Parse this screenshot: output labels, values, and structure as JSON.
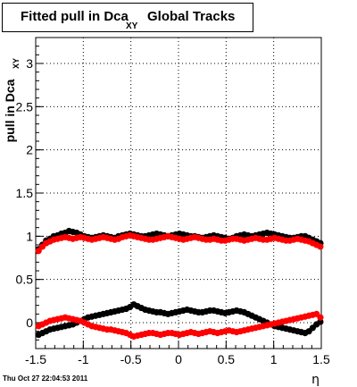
{
  "title": {
    "main": "Fitted pull in Dca",
    "subscript": "XY",
    "rest": "Global Tracks"
  },
  "footer": "Thu Oct 27 22:04:53 2011",
  "chart_data": {
    "type": "scatter",
    "title": "Fitted pull in Dca XY Global Tracks",
    "xlabel": "η",
    "ylabel": "pull in Dca",
    "ylabel_sub": "XY",
    "xlim": [
      -1.5,
      1.5
    ],
    "ylim": [
      -0.3,
      3.3
    ],
    "grid": true,
    "x_ticks": [
      -1.5,
      -1,
      -0.5,
      0,
      0.5,
      1,
      1.5
    ],
    "x_tick_labels": [
      "-1.5",
      "-1",
      "-0.5",
      "0",
      "0.5",
      "1",
      "1.5"
    ],
    "y_ticks": [
      0,
      0.5,
      1,
      1.5,
      2,
      2.5,
      3
    ],
    "y_tick_labels": [
      "0",
      "0.5",
      "1",
      "1.5",
      "2",
      "2.5",
      "3"
    ],
    "x": [
      -1.47,
      -1.43,
      -1.39,
      -1.35,
      -1.31,
      -1.27,
      -1.23,
      -1.19,
      -1.15,
      -1.11,
      -1.07,
      -1.03,
      -0.99,
      -0.95,
      -0.91,
      -0.87,
      -0.83,
      -0.79,
      -0.75,
      -0.71,
      -0.67,
      -0.63,
      -0.59,
      -0.55,
      -0.51,
      -0.47,
      -0.43,
      -0.39,
      -0.35,
      -0.31,
      -0.27,
      -0.23,
      -0.19,
      -0.15,
      -0.11,
      -0.07,
      -0.03,
      0.01,
      0.05,
      0.09,
      0.13,
      0.17,
      0.21,
      0.25,
      0.29,
      0.33,
      0.37,
      0.41,
      0.45,
      0.49,
      0.53,
      0.57,
      0.61,
      0.65,
      0.69,
      0.73,
      0.77,
      0.81,
      0.85,
      0.89,
      0.93,
      0.97,
      1.01,
      1.05,
      1.09,
      1.13,
      1.17,
      1.21,
      1.25,
      1.29,
      1.33,
      1.37,
      1.41,
      1.45,
      1.49
    ],
    "series": [
      {
        "color": "#000000",
        "values": [
          0.85,
          0.9,
          0.95,
          0.97,
          1.0,
          1.01,
          1.03,
          1.04,
          1.06,
          1.05,
          1.04,
          1.02,
          1.0,
          0.99,
          0.98,
          0.99,
          1.0,
          1.01,
          1.0,
          0.99,
          0.98,
          1.0,
          1.01,
          1.02,
          1.03,
          1.02,
          1.01,
          1.0,
          1.0,
          1.01,
          1.02,
          1.03,
          1.02,
          1.01,
          1.0,
          1.01,
          1.02,
          1.03,
          1.02,
          1.01,
          1.0,
          1.0,
          0.99,
          0.98,
          0.99,
          1.0,
          1.01,
          1.0,
          0.99,
          0.98,
          0.97,
          0.98,
          1.0,
          1.01,
          1.02,
          1.01,
          1.0,
          1.01,
          1.02,
          1.03,
          1.04,
          1.03,
          1.02,
          1.01,
          1.0,
          0.99,
          0.98,
          0.98,
          0.99,
          1.0,
          1.0,
          0.98,
          0.96,
          0.94,
          0.92
        ]
      },
      {
        "color": "#ff0000",
        "values": [
          0.83,
          0.88,
          0.92,
          0.94,
          0.96,
          0.97,
          0.98,
          0.99,
          0.98,
          0.97,
          0.98,
          0.99,
          0.98,
          0.97,
          0.96,
          0.97,
          0.98,
          0.99,
          0.98,
          0.97,
          0.96,
          0.97,
          0.99,
          1.0,
          1.01,
          1.0,
          0.99,
          0.98,
          0.97,
          0.96,
          0.96,
          0.97,
          0.98,
          0.99,
          1.0,
          0.99,
          0.98,
          0.97,
          0.96,
          0.97,
          0.98,
          0.99,
          0.98,
          0.97,
          0.96,
          0.96,
          0.97,
          0.96,
          0.95,
          0.95,
          0.96,
          0.97,
          0.97,
          0.96,
          0.95,
          0.96,
          0.97,
          0.98,
          0.97,
          0.96,
          0.96,
          0.97,
          0.98,
          0.97,
          0.96,
          0.95,
          0.95,
          0.96,
          0.97,
          0.96,
          0.95,
          0.94,
          0.92,
          0.9,
          0.88
        ]
      },
      {
        "color": "#000000",
        "values": [
          -0.14,
          -0.12,
          -0.1,
          -0.08,
          -0.07,
          -0.06,
          -0.05,
          -0.04,
          -0.03,
          -0.02,
          0.0,
          0.02,
          0.04,
          0.06,
          0.07,
          0.08,
          0.09,
          0.1,
          0.11,
          0.12,
          0.13,
          0.14,
          0.15,
          0.16,
          0.18,
          0.21,
          0.19,
          0.17,
          0.15,
          0.14,
          0.13,
          0.12,
          0.12,
          0.11,
          0.1,
          0.11,
          0.12,
          0.13,
          0.14,
          0.15,
          0.14,
          0.13,
          0.12,
          0.12,
          0.13,
          0.14,
          0.14,
          0.13,
          0.12,
          0.11,
          0.12,
          0.13,
          0.14,
          0.13,
          0.12,
          0.1,
          0.08,
          0.06,
          0.04,
          0.02,
          0.0,
          -0.02,
          -0.04,
          -0.05,
          -0.06,
          -0.07,
          -0.08,
          -0.09,
          -0.1,
          -0.11,
          -0.12,
          -0.1,
          -0.06,
          -0.02,
          0.01
        ]
      },
      {
        "color": "#ff0000",
        "values": [
          -0.04,
          -0.02,
          0.0,
          0.02,
          0.03,
          0.04,
          0.05,
          0.06,
          0.05,
          0.04,
          0.03,
          0.02,
          0.0,
          -0.02,
          -0.04,
          -0.05,
          -0.06,
          -0.07,
          -0.08,
          -0.08,
          -0.09,
          -0.1,
          -0.11,
          -0.12,
          -0.14,
          -0.16,
          -0.15,
          -0.14,
          -0.13,
          -0.12,
          -0.12,
          -0.13,
          -0.14,
          -0.13,
          -0.12,
          -0.12,
          -0.13,
          -0.14,
          -0.13,
          -0.12,
          -0.11,
          -0.12,
          -0.13,
          -0.12,
          -0.11,
          -0.1,
          -0.11,
          -0.12,
          -0.11,
          -0.1,
          -0.09,
          -0.1,
          -0.11,
          -0.1,
          -0.09,
          -0.08,
          -0.07,
          -0.06,
          -0.05,
          -0.04,
          -0.03,
          -0.02,
          -0.01,
          0.0,
          0.01,
          0.02,
          0.03,
          0.04,
          0.05,
          0.06,
          0.07,
          0.08,
          0.09,
          0.1,
          0.06
        ]
      }
    ]
  }
}
